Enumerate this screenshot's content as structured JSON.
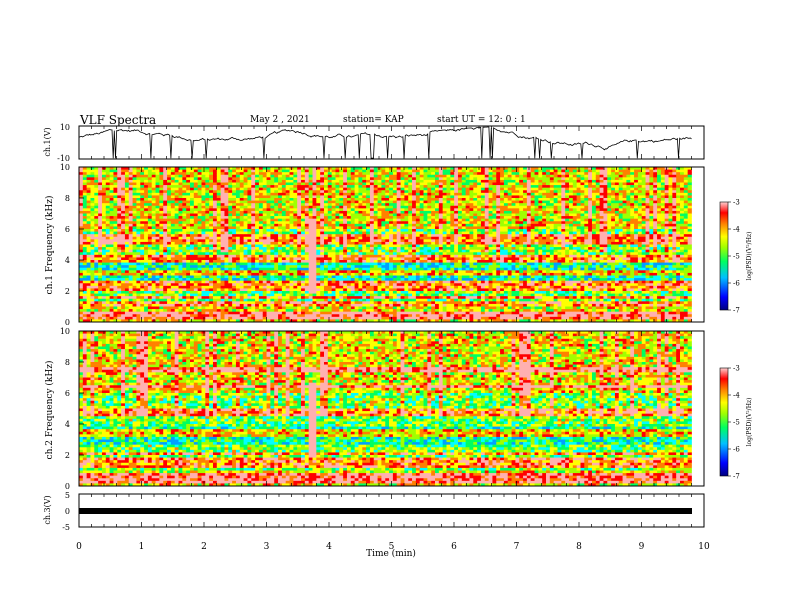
{
  "header": {
    "title": "VLF Spectra",
    "date": "May 2 , 2021",
    "station": "station= KAP",
    "start": "start  UT =  12: 0  : 1"
  },
  "colors": {
    "spectrum": [
      "#000080",
      "#0000ff",
      "#00a0ff",
      "#00ffff",
      "#00ff60",
      "#a0ff00",
      "#ffff00",
      "#ff8000",
      "#ff0000",
      "#ffb0b0"
    ]
  },
  "chart_data": [
    {
      "type": "line",
      "title": "",
      "ylabel": "ch.1(V)",
      "ylim": [
        -10,
        10
      ],
      "yticks": [
        "10",
        "-10"
      ],
      "xlim": [
        0,
        10
      ],
      "x_span_min": [
        0,
        9.8
      ],
      "waveform_level_estimate": [
        0,
        5
      ],
      "description_key": "ch1"
    },
    {
      "type": "heatmap",
      "ylabel": "ch.1 Frequency (kHz)",
      "ylim": [
        0,
        10
      ],
      "yticks": [
        "0",
        "2",
        "4",
        "6",
        "8",
        "10"
      ],
      "xlim": [
        0,
        10
      ],
      "x_span_min": [
        0,
        9.8
      ],
      "colorbar": {
        "label": "log(PSD)(V²/Hz)",
        "range": [
          -7,
          -3
        ],
        "ticks": [
          "-3",
          "-4",
          "-5",
          "-6",
          "-7"
        ]
      },
      "persistent_lines_khz": [
        0.3,
        0.6,
        1.2,
        1.6,
        2.05,
        2.3,
        2.55,
        3.2,
        3.95,
        4.15,
        5.2,
        5.5
      ],
      "burst_time_min": 3.75
    },
    {
      "type": "heatmap",
      "ylabel": "ch.2 Frequency (kHz)",
      "ylim": [
        0,
        10
      ],
      "yticks": [
        "0",
        "2",
        "4",
        "6",
        "8",
        "10"
      ],
      "xlim": [
        0,
        10
      ],
      "x_span_min": [
        0,
        9.8
      ],
      "colorbar": {
        "label": "log(PSD)(V²/Hz)",
        "range": [
          -7,
          -3
        ],
        "ticks": [
          "-3",
          "-4",
          "-5",
          "-6",
          "-7"
        ]
      },
      "persistent_lines_khz": [
        0.35,
        0.7,
        1.3,
        1.7,
        2.1,
        3.35,
        3.6,
        4.65,
        4.9,
        6.4,
        7.5
      ],
      "burst_time_min": 3.75
    },
    {
      "type": "line",
      "ylabel": "ch.3(V)",
      "ylim": [
        -5,
        5
      ],
      "yticks": [
        "5",
        "0",
        "-5"
      ],
      "xlim": [
        0,
        10
      ],
      "xlabel": "Time (min)",
      "xticks": [
        "0",
        "1",
        "2",
        "3",
        "4",
        "5",
        "6",
        "7",
        "8",
        "9",
        "10"
      ],
      "values_constant": 0
    }
  ]
}
